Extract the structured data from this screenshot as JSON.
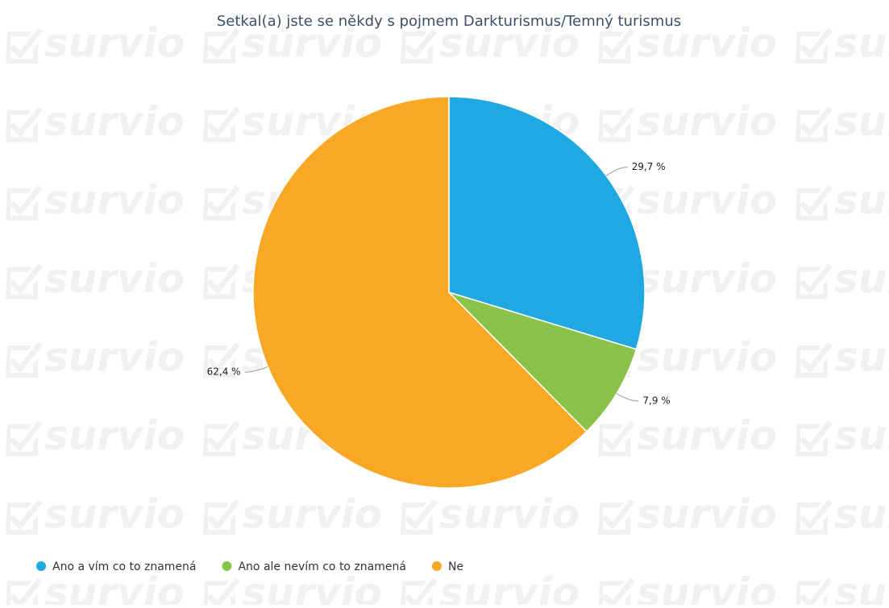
{
  "chart_data": {
    "type": "pie",
    "title": "Setkal(a) jste se někdy s pojmem Darkturismus/Temný turismus",
    "watermark": "survio",
    "categories": [
      "Ano a vím co to znamená",
      "Ano ale nevím co to znamená",
      "Ne"
    ],
    "values": [
      29.7,
      7.9,
      62.4
    ],
    "value_labels": [
      "29,7 %",
      "7,9 %",
      "62,4 %"
    ],
    "colors": [
      "#1fa8e1",
      "#8bc34a",
      "#f9a825"
    ],
    "legend": "bottom-left"
  }
}
